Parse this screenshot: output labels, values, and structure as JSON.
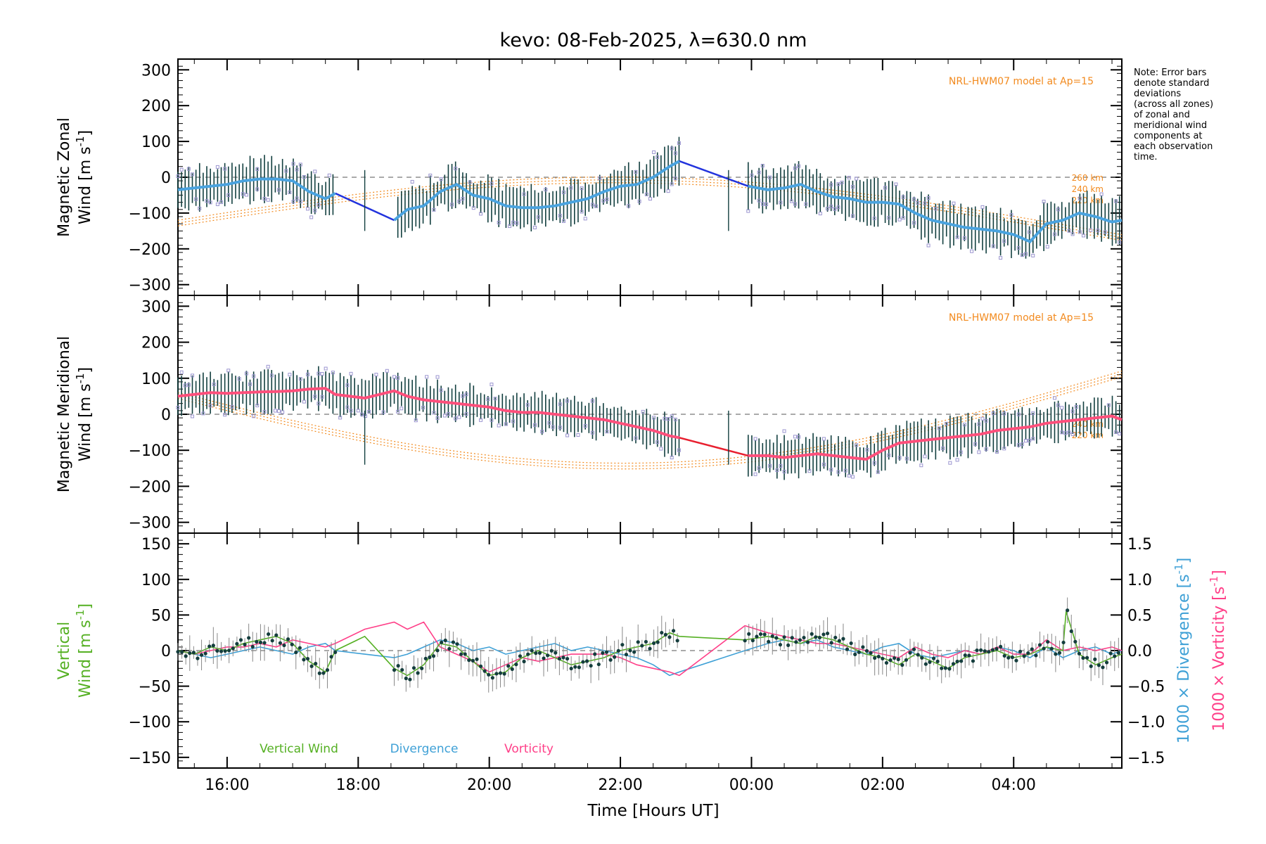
{
  "title": "kevo: 08-Feb-2025, λ=630.0 nm",
  "note": [
    "Note: Error bars",
    "denote standard",
    "deviations",
    "(across all zones)",
    "of zonal and",
    "meridional wind",
    "components at",
    "each observation",
    "time."
  ],
  "colors": {
    "zonal_fit": "#4aa3df",
    "zonal_gap": "#2233dd",
    "meridional_fit": "#ff4f7b",
    "meridional_gap": "#e81f2f",
    "model": "#f28a1e",
    "errorbar": "#123f3f",
    "scatter": "#9b95d0",
    "vertical": "#55b023",
    "divergence": "#3ea0d6",
    "vorticity": "#ff3f88",
    "point": "#143d3d",
    "zero_line": "#777777"
  },
  "chart_data": [
    {
      "type": "line",
      "name": "zonal",
      "ylabel": [
        "Magnetic Zonal",
        "Wind [m s",
        "-1",
        "]"
      ],
      "ylim": [
        -330,
        330
      ],
      "xlim": [
        15.25,
        29.65
      ],
      "yticks": [
        300,
        200,
        100,
        0,
        -100,
        -200,
        -300
      ],
      "yticklabels": [
        "300",
        "200",
        "100",
        "0",
        "−100",
        "−200",
        "−300"
      ],
      "model_label": "NRL-HWM07 model at Ap=15",
      "model_altitudes": [
        "260 km",
        "240 km",
        "220 km"
      ],
      "fit": {
        "x": [
          15.25,
          15.5,
          15.75,
          16.0,
          16.25,
          16.5,
          16.75,
          17.0,
          17.25,
          17.5,
          17.65,
          18.2,
          18.55,
          18.75,
          19.0,
          19.25,
          19.5,
          19.75,
          20.0,
          20.25,
          20.5,
          20.75,
          21.0,
          21.25,
          21.5,
          21.75,
          22.0,
          22.25,
          22.5,
          22.75,
          22.9
        ],
        "y": [
          -35,
          -30,
          -25,
          -20,
          -10,
          -5,
          -5,
          -10,
          -40,
          -60,
          -45,
          null,
          -120,
          -90,
          -80,
          -40,
          -20,
          -50,
          -60,
          -80,
          -85,
          -85,
          -80,
          -70,
          -60,
          -40,
          -25,
          -20,
          0,
          30,
          45
        ]
      },
      "fit2": {
        "x": [
          23.95,
          24.25,
          24.5,
          24.75,
          25.0,
          25.25,
          25.5,
          25.75,
          26.0,
          26.25,
          26.5,
          26.75,
          27.0,
          27.25,
          27.5,
          27.75,
          28.0,
          28.25,
          28.5,
          28.75,
          29.0,
          29.25,
          29.5,
          29.65
        ],
        "y": [
          -25,
          -35,
          -30,
          -20,
          -40,
          -55,
          -60,
          -70,
          -70,
          -75,
          -100,
          -120,
          -130,
          -140,
          -145,
          -150,
          -160,
          -180,
          -130,
          -120,
          -100,
          -110,
          -125,
          -120
        ]
      },
      "gaps": [
        {
          "x": [
            17.65,
            18.55
          ],
          "y": [
            -45,
            -120
          ]
        },
        {
          "x": [
            22.9,
            23.95
          ],
          "y": [
            45,
            -25
          ]
        }
      ],
      "errorbar_halfwidth": 60
    },
    {
      "type": "line",
      "name": "meridional",
      "ylabel": [
        "Magnetic Meridional",
        "Wind [m s",
        "-1",
        "]"
      ],
      "ylim": [
        -330,
        330
      ],
      "xlim": [
        15.25,
        29.65
      ],
      "yticks": [
        300,
        200,
        100,
        0,
        -100,
        -200,
        -300
      ],
      "yticklabels": [
        "300",
        "200",
        "100",
        "0",
        "−100",
        "−200",
        "−300"
      ],
      "model_label": "NRL-HWM07 model at Ap=15",
      "model_altitudes": [
        "240 km",
        "220 km"
      ],
      "fit": {
        "x": [
          15.25,
          15.5,
          15.75,
          16.0,
          16.25,
          16.5,
          16.75,
          17.0,
          17.25,
          17.5,
          17.65,
          18.1,
          18.55,
          18.75,
          19.0,
          19.25,
          19.5,
          19.75,
          20.0,
          20.25,
          20.5,
          20.75,
          21.0,
          21.25,
          21.5,
          21.75,
          22.0,
          22.25,
          22.5,
          22.75,
          22.9
        ],
        "y": [
          50,
          55,
          60,
          58,
          60,
          62,
          63,
          65,
          70,
          72,
          55,
          45,
          65,
          50,
          40,
          35,
          30,
          25,
          20,
          10,
          5,
          5,
          0,
          -5,
          -10,
          -15,
          -25,
          -35,
          -45,
          -60,
          -65
        ]
      },
      "fit2": {
        "x": [
          23.95,
          24.25,
          24.5,
          24.75,
          25.0,
          25.25,
          25.5,
          25.75,
          26.0,
          26.25,
          26.5,
          26.75,
          27.0,
          27.25,
          27.5,
          27.75,
          28.0,
          28.25,
          28.5,
          28.75,
          29.0,
          29.25,
          29.5,
          29.65
        ],
        "y": [
          -115,
          -115,
          -120,
          -115,
          -110,
          -115,
          -120,
          -125,
          -100,
          -80,
          -75,
          -70,
          -65,
          -60,
          -55,
          -45,
          -40,
          -35,
          -25,
          -20,
          -15,
          -10,
          -5,
          -15
        ]
      },
      "gaps": [
        {
          "x": [
            22.9,
            23.95
          ],
          "y": [
            -65,
            -115
          ]
        }
      ],
      "errorbar_halfwidth": 55
    },
    {
      "type": "line",
      "name": "vertical",
      "ylabel_left": [
        "Vertical",
        "Wind [m s",
        "-1",
        "]"
      ],
      "ylabel_right1": [
        "1000 × Divergence [s",
        "-1",
        "]"
      ],
      "ylabel_right2": [
        "1000 × Vorticity [s",
        "-1",
        "]"
      ],
      "ylim": [
        -165,
        165
      ],
      "ylim_right": [
        -1.65,
        1.65
      ],
      "yticks": [
        150,
        100,
        50,
        0,
        -50,
        -100,
        -150
      ],
      "yticklabels": [
        "150",
        "100",
        "50",
        "0",
        "−50",
        "−100",
        "−150"
      ],
      "yticks_right": [
        1.5,
        1.0,
        0.5,
        0.0,
        -0.5,
        -1.0,
        -1.5
      ],
      "yticklabels_right": [
        "1.5",
        "1.0",
        "0.5",
        "0.0",
        "−0.5",
        "−1.0",
        "−1.5"
      ],
      "legend": [
        "Vertical Wind",
        "Divergence",
        "Vorticity"
      ],
      "vertical": {
        "x": [
          15.25,
          15.5,
          15.75,
          16.0,
          16.25,
          16.5,
          16.75,
          17.0,
          17.25,
          17.5,
          17.65,
          18.1,
          18.55,
          18.75,
          19.0,
          19.25,
          19.5,
          19.75,
          20.0,
          20.25,
          20.5,
          20.75,
          21.0,
          21.25,
          21.5,
          21.75,
          22.0,
          22.25,
          22.5,
          22.75,
          22.9,
          23.9,
          24.25,
          24.5,
          24.75,
          25.0,
          25.25,
          25.5,
          25.75,
          26.0,
          26.25,
          26.5,
          26.75,
          27.0,
          27.25,
          27.5,
          27.75,
          28.0,
          28.25,
          28.5,
          28.75,
          28.8,
          29.0,
          29.25,
          29.5,
          29.65
        ],
        "y": [
          0,
          -5,
          5,
          0,
          10,
          15,
          20,
          10,
          -15,
          -30,
          0,
          20,
          -25,
          -35,
          -20,
          10,
          5,
          -15,
          -35,
          -30,
          -10,
          0,
          -10,
          -20,
          -15,
          -10,
          0,
          5,
          10,
          25,
          20,
          15,
          20,
          15,
          10,
          20,
          15,
          5,
          -5,
          -10,
          -20,
          -5,
          -15,
          -25,
          -10,
          -5,
          0,
          -10,
          -5,
          5,
          0,
          55,
          -5,
          -20,
          -10,
          -5
        ]
      },
      "divergence": {
        "x": [
          15.25,
          15.5,
          15.75,
          16.0,
          16.25,
          16.5,
          16.75,
          17.0,
          17.25,
          17.5,
          17.65,
          18.1,
          18.55,
          18.75,
          19.0,
          19.25,
          19.5,
          19.75,
          20.0,
          20.25,
          20.5,
          20.75,
          21.0,
          21.25,
          21.5,
          21.75,
          22.0,
          22.25,
          22.5,
          22.75,
          22.9,
          23.9,
          24.25,
          24.5,
          24.75,
          25.0,
          25.25,
          25.5,
          25.75,
          26.0,
          26.25,
          26.5,
          26.75,
          27.0,
          27.25,
          27.5,
          27.75,
          28.0,
          28.25,
          28.5,
          28.75,
          29.0,
          29.25,
          29.5,
          29.65
        ],
        "y": [
          0.0,
          -0.05,
          -0.1,
          -0.05,
          0.0,
          0.05,
          0.0,
          -0.05,
          0.05,
          0.1,
          0.0,
          -0.05,
          -0.1,
          -0.05,
          0.05,
          0.15,
          0.1,
          0.0,
          0.05,
          -0.05,
          0.0,
          0.05,
          0.1,
          0.0,
          0.05,
          0.0,
          -0.05,
          -0.1,
          -0.2,
          -0.35,
          -0.3,
          0.0,
          0.1,
          0.15,
          0.1,
          0.15,
          0.05,
          0.0,
          -0.05,
          0.05,
          0.1,
          -0.05,
          -0.1,
          -0.05,
          0.0,
          -0.05,
          0.05,
          0.0,
          -0.1,
          0.05,
          -0.1,
          0.0,
          0.05,
          -0.05,
          0.0
        ]
      },
      "vorticity": {
        "x": [
          15.25,
          15.5,
          15.75,
          16.0,
          16.25,
          16.5,
          16.75,
          17.0,
          17.25,
          17.5,
          17.65,
          18.1,
          18.55,
          18.75,
          19.0,
          19.25,
          19.5,
          19.75,
          20.0,
          20.25,
          20.5,
          20.75,
          21.0,
          21.25,
          21.5,
          21.75,
          22.0,
          22.25,
          22.5,
          22.75,
          22.9,
          23.9,
          24.25,
          24.5,
          24.75,
          25.0,
          25.25,
          25.5,
          25.75,
          26.0,
          26.25,
          26.5,
          26.75,
          27.0,
          27.25,
          27.5,
          27.75,
          28.0,
          28.25,
          28.5,
          28.75,
          29.0,
          29.25,
          29.5,
          29.65
        ],
        "y": [
          0.0,
          -0.05,
          0.0,
          0.05,
          0.05,
          0.1,
          0.05,
          0.15,
          0.1,
          0.05,
          0.1,
          0.3,
          0.4,
          0.3,
          0.4,
          0.05,
          -0.05,
          -0.15,
          -0.3,
          -0.2,
          -0.1,
          -0.15,
          -0.1,
          -0.05,
          -0.05,
          -0.05,
          -0.1,
          -0.2,
          -0.25,
          -0.3,
          -0.35,
          0.35,
          0.25,
          0.2,
          0.15,
          0.1,
          0.1,
          0.05,
          0.0,
          -0.05,
          -0.1,
          0.05,
          -0.05,
          -0.1,
          0.0,
          -0.05,
          0.05,
          -0.05,
          -0.05,
          0.15,
          0.0,
          0.05,
          0.0,
          0.05,
          0.0
        ]
      }
    }
  ],
  "xaxis": {
    "label": "Time [Hours UT]",
    "ticks": [
      16,
      18,
      20,
      22,
      24,
      26,
      28
    ],
    "ticklabels": [
      "16:00",
      "18:00",
      "20:00",
      "22:00",
      "00:00",
      "02:00",
      "04:00"
    ]
  }
}
